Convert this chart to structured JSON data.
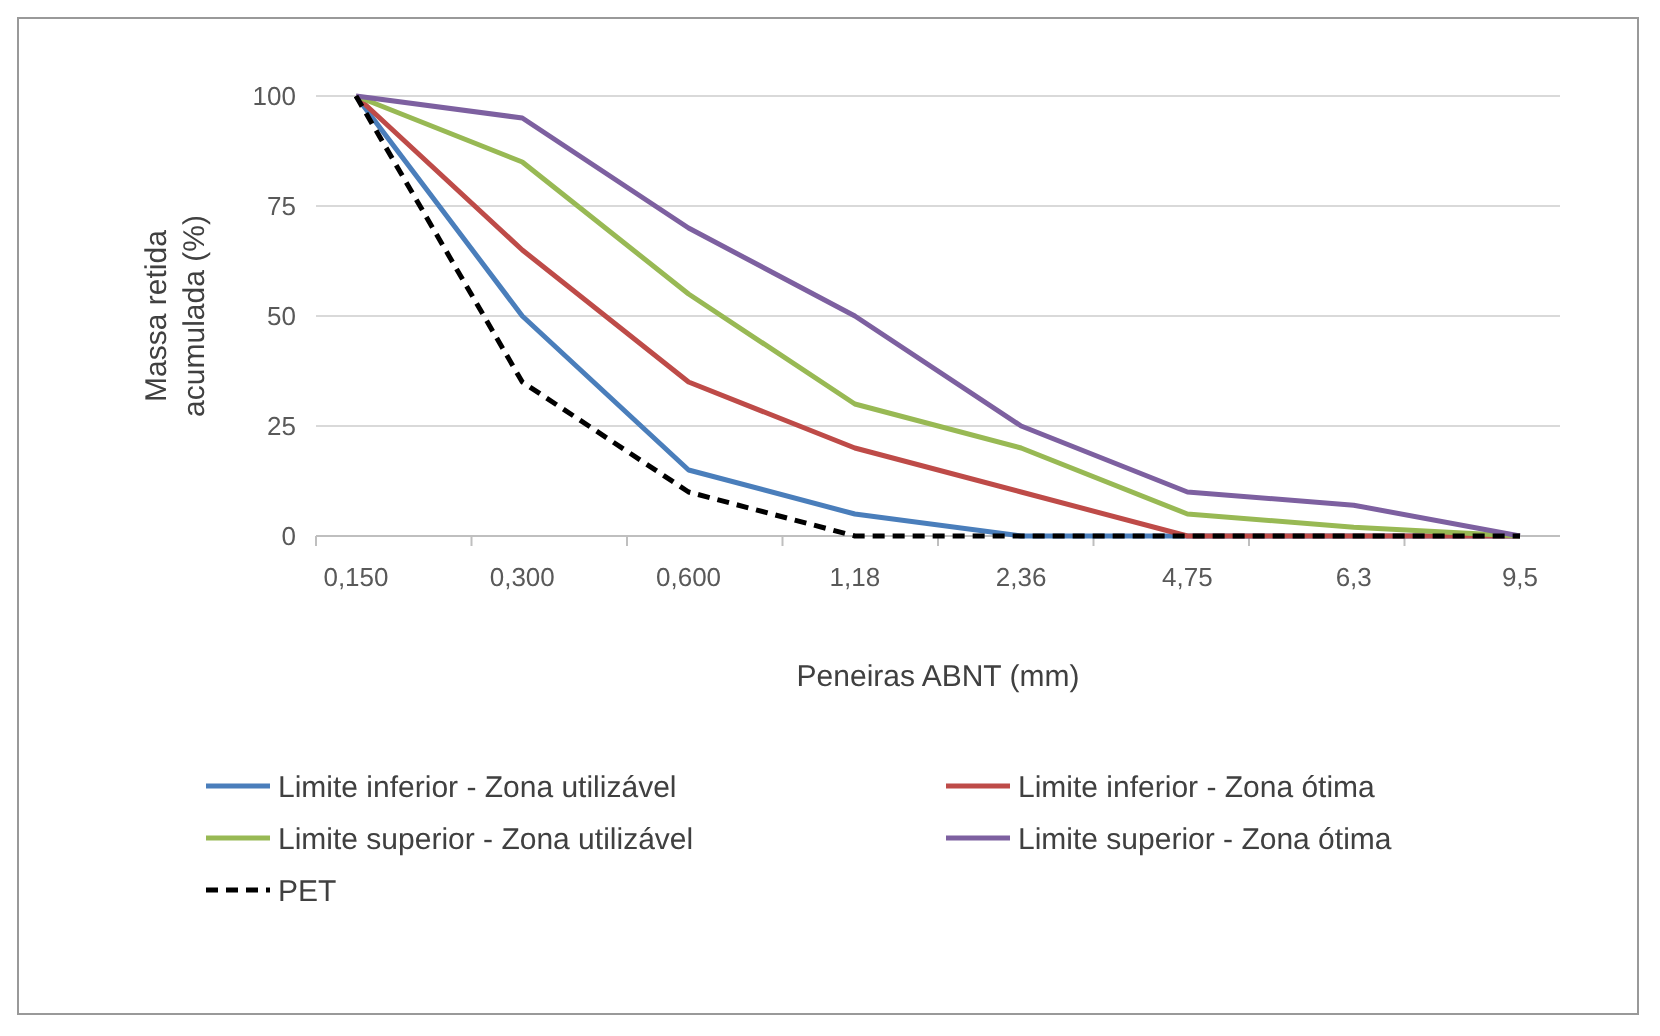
{
  "chart_data": {
    "type": "line",
    "xlabel": "Peneiras ABNT (mm)",
    "ylabel": "Massa retida acumulada (%)",
    "categories": [
      "0,150",
      "0,300",
      "0,600",
      "1,18",
      "2,36",
      "4,75",
      "6,3",
      "9,5"
    ],
    "series": [
      {
        "name": "Limite inferior - Zona utilizável",
        "color": "#4a7ebb",
        "values": [
          100,
          50,
          15,
          5,
          0,
          0,
          0,
          0
        ]
      },
      {
        "name": "Limite inferior - Zona ótima",
        "color": "#be4b48",
        "values": [
          100,
          65,
          35,
          20,
          10,
          0,
          0,
          0
        ]
      },
      {
        "name": "Limite superior - Zona utilizável",
        "color": "#98b954",
        "values": [
          100,
          85,
          55,
          30,
          20,
          5,
          2,
          0
        ]
      },
      {
        "name": "Limite superior - Zona ótima",
        "color": "#7d60a0",
        "values": [
          100,
          95,
          70,
          50,
          25,
          10,
          7,
          0
        ]
      },
      {
        "name": "PET",
        "color": "#000000",
        "line_style": "dashed",
        "values": [
          100,
          35,
          10,
          0,
          0,
          0,
          0,
          0
        ]
      }
    ],
    "ylim": [
      0,
      100
    ],
    "yticks": [
      0,
      25,
      50,
      75,
      100
    ],
    "grid": "y",
    "legend": "bottom",
    "marker": "none"
  }
}
